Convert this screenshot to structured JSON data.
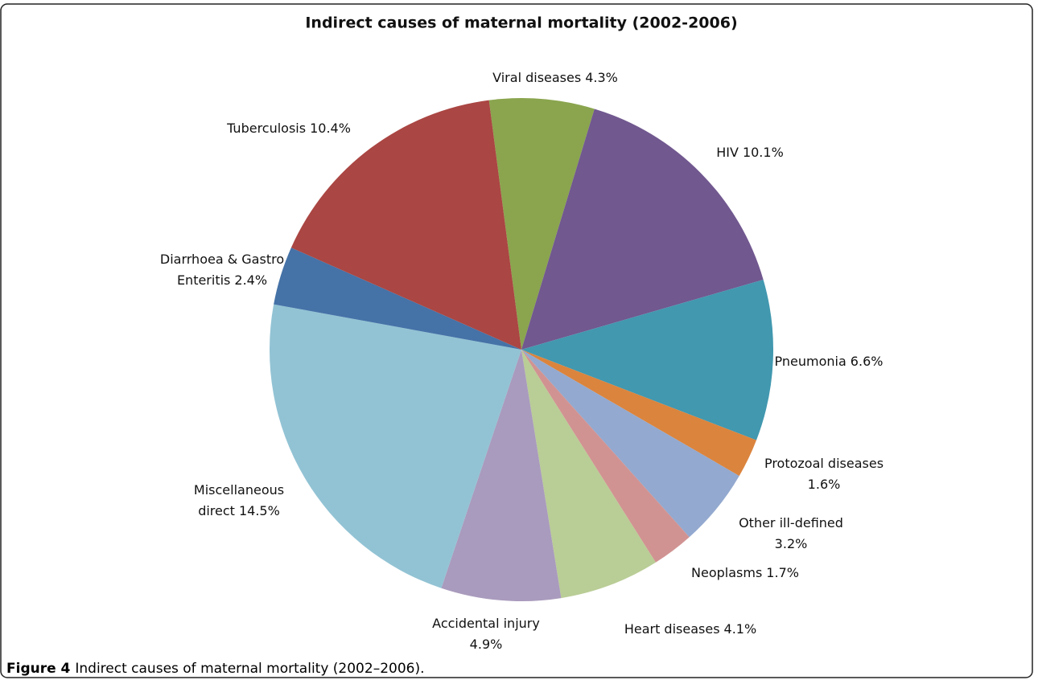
{
  "chart_data": {
    "type": "pie",
    "title": "Indirect causes of maternal mortality (2002-2006)",
    "categories": [
      "Viral diseases",
      "HIV",
      "Pneumonia",
      "Protozoal diseases",
      "Other ill-defined",
      "Neoplasms",
      "Heart diseases",
      "Accidental injury",
      "Miscellaneous direct",
      "Diarrhoea & Gastro Enteritis",
      "Tuberculosis"
    ],
    "values": [
      4.3,
      10.1,
      6.6,
      1.6,
      3.2,
      1.7,
      4.1,
      4.9,
      14.5,
      2.4,
      10.4
    ],
    "value_labels": [
      "4.3%",
      "10.1%",
      "6.6%",
      "1.6%",
      "3.2%",
      "1.7%",
      "4.1%",
      "4.9%",
      "14.5%",
      "2.4%",
      "10.4%"
    ],
    "colors": [
      "#8aa54e",
      "#71588f",
      "#4198af",
      "#db843d",
      "#93a9cf",
      "#d19392",
      "#b9cd96",
      "#a99bbd",
      "#92c3d4",
      "#4572a7",
      "#aa4643"
    ]
  },
  "caption": {
    "label": "Figure 4",
    "text": "Indirect causes of maternal mortality (2002–2006)."
  }
}
